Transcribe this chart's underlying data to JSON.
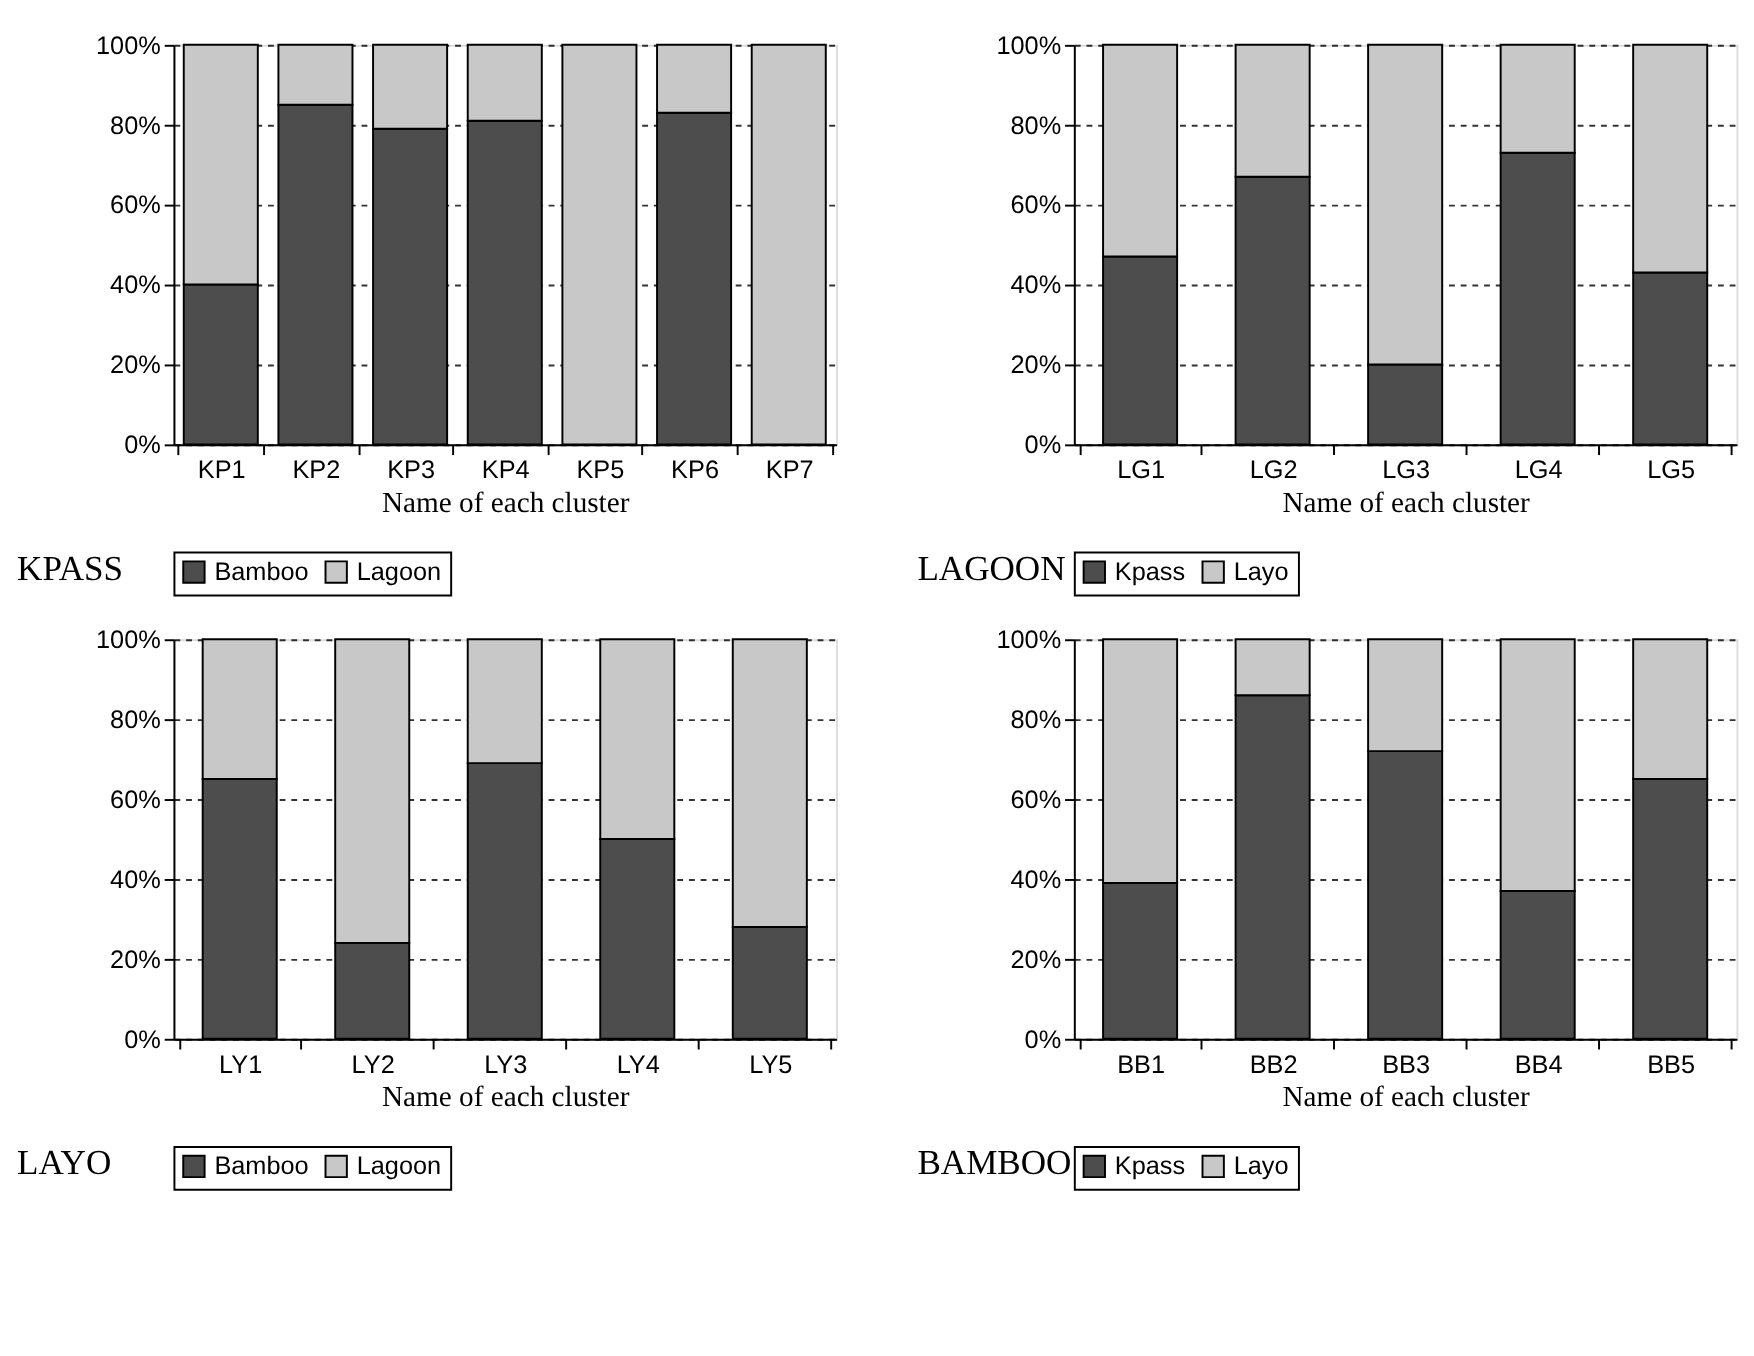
{
  "chart_data": [
    {
      "type": "bar",
      "title": "KPASS",
      "xlabel": "Name of each cluster",
      "categories": [
        "KP1",
        "KP2",
        "KP3",
        "KP4",
        "KP5",
        "KP6",
        "KP7"
      ],
      "stacked": true,
      "ylim": [
        0,
        100
      ],
      "yticks": [
        {
          "value": 0,
          "label": "0%"
        },
        {
          "value": 20,
          "label": "20%"
        },
        {
          "value": 40,
          "label": "40%"
        },
        {
          "value": 60,
          "label": "60%"
        },
        {
          "value": 80,
          "label": "80%"
        },
        {
          "value": 100,
          "label": "100%"
        }
      ],
      "grid": "y",
      "legend": "bottom",
      "series": [
        {
          "name": "Bamboo",
          "color": "#4d4d4d",
          "values": [
            40,
            85,
            79,
            81,
            0,
            83,
            0
          ]
        },
        {
          "name": "Lagoon",
          "color": "#c8c8c8",
          "values": [
            60,
            15,
            21,
            19,
            100,
            17,
            100
          ]
        }
      ]
    },
    {
      "type": "bar",
      "title": "LAGOON",
      "xlabel": "Name of each cluster",
      "categories": [
        "LG1",
        "LG2",
        "LG3",
        "LG4",
        "LG5"
      ],
      "stacked": true,
      "ylim": [
        0,
        100
      ],
      "yticks": [
        {
          "value": 0,
          "label": "0%"
        },
        {
          "value": 20,
          "label": "20%"
        },
        {
          "value": 40,
          "label": "40%"
        },
        {
          "value": 60,
          "label": "60%"
        },
        {
          "value": 80,
          "label": "80%"
        },
        {
          "value": 100,
          "label": "100%"
        }
      ],
      "grid": "y",
      "legend": "bottom",
      "series": [
        {
          "name": "Kpass",
          "color": "#4d4d4d",
          "values": [
            47,
            67,
            20,
            73,
            43
          ]
        },
        {
          "name": "Layo",
          "color": "#c8c8c8",
          "values": [
            53,
            33,
            80,
            27,
            57
          ]
        }
      ]
    },
    {
      "type": "bar",
      "title": "LAYO",
      "xlabel": "Name of each cluster",
      "categories": [
        "LY1",
        "LY2",
        "LY3",
        "LY4",
        "LY5"
      ],
      "stacked": true,
      "ylim": [
        0,
        100
      ],
      "yticks": [
        {
          "value": 0,
          "label": "0%"
        },
        {
          "value": 20,
          "label": "20%"
        },
        {
          "value": 40,
          "label": "40%"
        },
        {
          "value": 60,
          "label": "60%"
        },
        {
          "value": 80,
          "label": "80%"
        },
        {
          "value": 100,
          "label": "100%"
        }
      ],
      "grid": "y",
      "legend": "bottom",
      "series": [
        {
          "name": "Bamboo",
          "color": "#4d4d4d",
          "values": [
            65,
            24,
            69,
            50,
            28
          ]
        },
        {
          "name": "Lagoon",
          "color": "#c8c8c8",
          "values": [
            35,
            76,
            31,
            50,
            72
          ]
        }
      ]
    },
    {
      "type": "bar",
      "title": "BAMBOO",
      "xlabel": "Name of each cluster",
      "categories": [
        "BB1",
        "BB2",
        "BB3",
        "BB4",
        "BB5"
      ],
      "stacked": true,
      "ylim": [
        0,
        100
      ],
      "yticks": [
        {
          "value": 0,
          "label": "0%"
        },
        {
          "value": 20,
          "label": "20%"
        },
        {
          "value": 40,
          "label": "40%"
        },
        {
          "value": 60,
          "label": "60%"
        },
        {
          "value": 80,
          "label": "80%"
        },
        {
          "value": 100,
          "label": "100%"
        }
      ],
      "grid": "y",
      "legend": "bottom",
      "series": [
        {
          "name": "Kpass",
          "color": "#4d4d4d",
          "values": [
            39,
            86,
            72,
            37,
            65
          ]
        },
        {
          "name": "Layo",
          "color": "#c8c8c8",
          "values": [
            61,
            14,
            28,
            63,
            35
          ]
        }
      ]
    }
  ]
}
